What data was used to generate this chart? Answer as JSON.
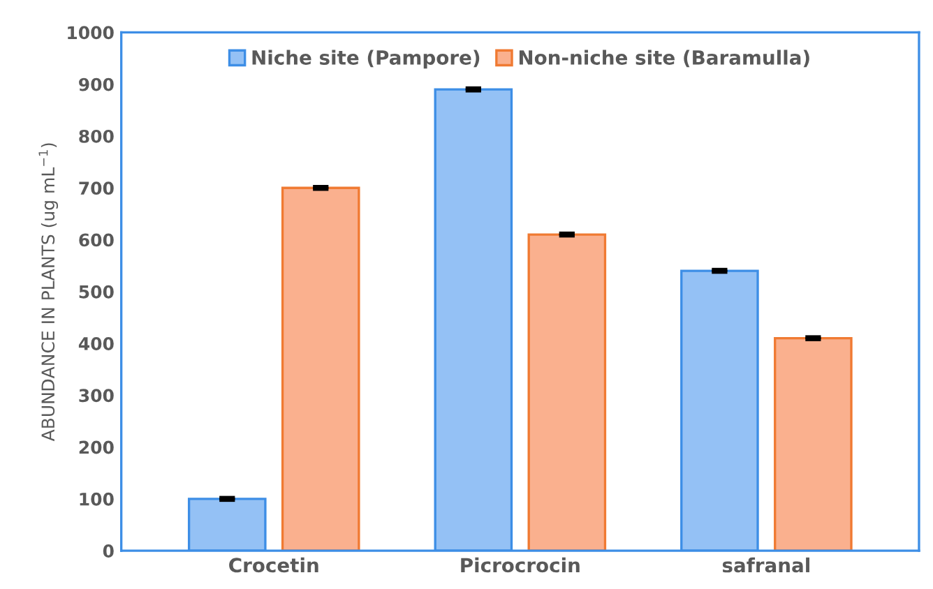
{
  "chart_data": {
    "type": "bar",
    "ylabel": "ABUNDANCE IN PLANTS (ug mL$^{−1}$)",
    "categories": [
      "Crocetin",
      "Picrocrocin",
      "safranal"
    ],
    "series": [
      {
        "name": "Niche site (Pampore)",
        "color": "#94c1f5",
        "values": [
          100,
          890,
          540
        ],
        "errors": [
          2,
          2,
          2
        ]
      },
      {
        "name": "Non-niche site (Baramulla)",
        "color": "#fab08e",
        "values": [
          700,
          610,
          410
        ],
        "errors": [
          2,
          2,
          2
        ]
      }
    ],
    "ylim": [
      0,
      1000
    ],
    "yticks": [
      0,
      100,
      200,
      300,
      400,
      500,
      600,
      700,
      800,
      900,
      1000
    ],
    "grid": false,
    "legend": "top"
  }
}
